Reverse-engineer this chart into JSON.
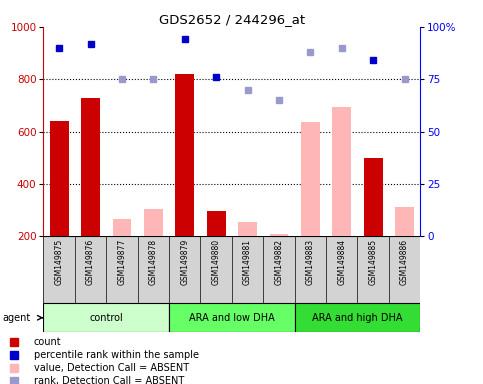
{
  "title": "GDS2652 / 244296_at",
  "samples": [
    "GSM149875",
    "GSM149876",
    "GSM149877",
    "GSM149878",
    "GSM149879",
    "GSM149880",
    "GSM149881",
    "GSM149882",
    "GSM149883",
    "GSM149884",
    "GSM149885",
    "GSM149886"
  ],
  "groups": [
    {
      "label": "control",
      "color": "#ccffcc",
      "start": 0,
      "end": 4
    },
    {
      "label": "ARA and low DHA",
      "color": "#66ff66",
      "start": 4,
      "end": 8
    },
    {
      "label": "ARA and high DHA",
      "color": "#33dd33",
      "start": 8,
      "end": 12
    }
  ],
  "count_values": [
    640,
    730,
    null,
    null,
    820,
    295,
    null,
    null,
    null,
    null,
    500,
    null
  ],
  "count_absent_values": [
    null,
    null,
    265,
    305,
    null,
    null,
    255,
    210,
    635,
    695,
    null,
    310
  ],
  "percentile_values": [
    920,
    935,
    null,
    null,
    955,
    810,
    null,
    null,
    null,
    null,
    875,
    null
  ],
  "rank_absent_values": [
    null,
    null,
    800,
    800,
    null,
    null,
    760,
    720,
    905,
    920,
    null,
    800
  ],
  "ylim": [
    200,
    1000
  ],
  "y2lim": [
    0,
    100
  ],
  "yticks": [
    200,
    400,
    600,
    800,
    1000
  ],
  "y2ticks": [
    0,
    25,
    50,
    75,
    100
  ],
  "grid_values": [
    400,
    600,
    800
  ],
  "count_color": "#cc0000",
  "count_absent_color": "#ffb6b6",
  "percentile_color": "#0000cc",
  "rank_absent_color": "#9999cc",
  "bg_color": "#d3d3d3",
  "plot_bg": "#ffffff",
  "legend_items": [
    {
      "color": "#cc0000",
      "label": "count"
    },
    {
      "color": "#0000cc",
      "label": "percentile rank within the sample"
    },
    {
      "color": "#ffb6b6",
      "label": "value, Detection Call = ABSENT"
    },
    {
      "color": "#9999cc",
      "label": "rank, Detection Call = ABSENT"
    }
  ]
}
